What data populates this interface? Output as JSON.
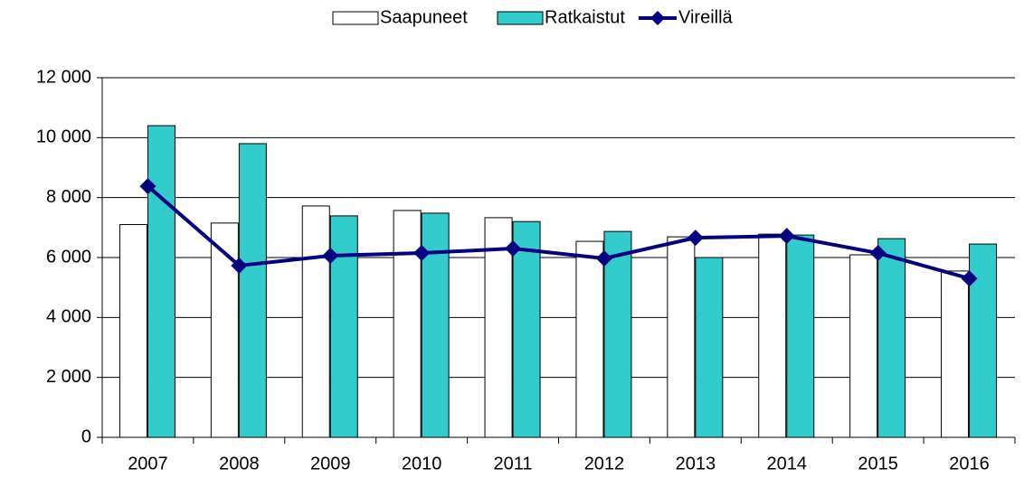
{
  "chart_data": {
    "type": "bar-line",
    "categories": [
      "2007",
      "2008",
      "2009",
      "2010",
      "2011",
      "2012",
      "2013",
      "2014",
      "2015",
      "2016"
    ],
    "series": [
      {
        "name": "Saapuneet",
        "type": "bar",
        "color": "#ffffff",
        "values": [
          7100,
          7150,
          7720,
          7570,
          7330,
          6540,
          6690,
          6780,
          6090,
          5550
        ]
      },
      {
        "name": "Ratkaistut",
        "type": "bar",
        "color": "#33cccc",
        "values": [
          10400,
          9800,
          7390,
          7480,
          7200,
          6870,
          6000,
          6750,
          6630,
          6450
        ]
      },
      {
        "name": "Vireillä",
        "type": "line",
        "color": "#000080",
        "values": [
          8380,
          5730,
          6060,
          6150,
          6300,
          5970,
          6660,
          6720,
          6150,
          5300
        ]
      }
    ],
    "ylim": [
      0,
      12000
    ],
    "yticks": [
      0,
      {
        "value": 2000,
        "label": "2 000"
      },
      {
        "value": 4000,
        "label": "4 000"
      },
      {
        "value": 6000,
        "label": "6 000"
      },
      {
        "value": 8000,
        "label": "8 000"
      },
      {
        "value": 10000,
        "label": "10 000"
      },
      {
        "value": 12000,
        "label": "12 000"
      }
    ],
    "grid": true,
    "legend": "top"
  }
}
